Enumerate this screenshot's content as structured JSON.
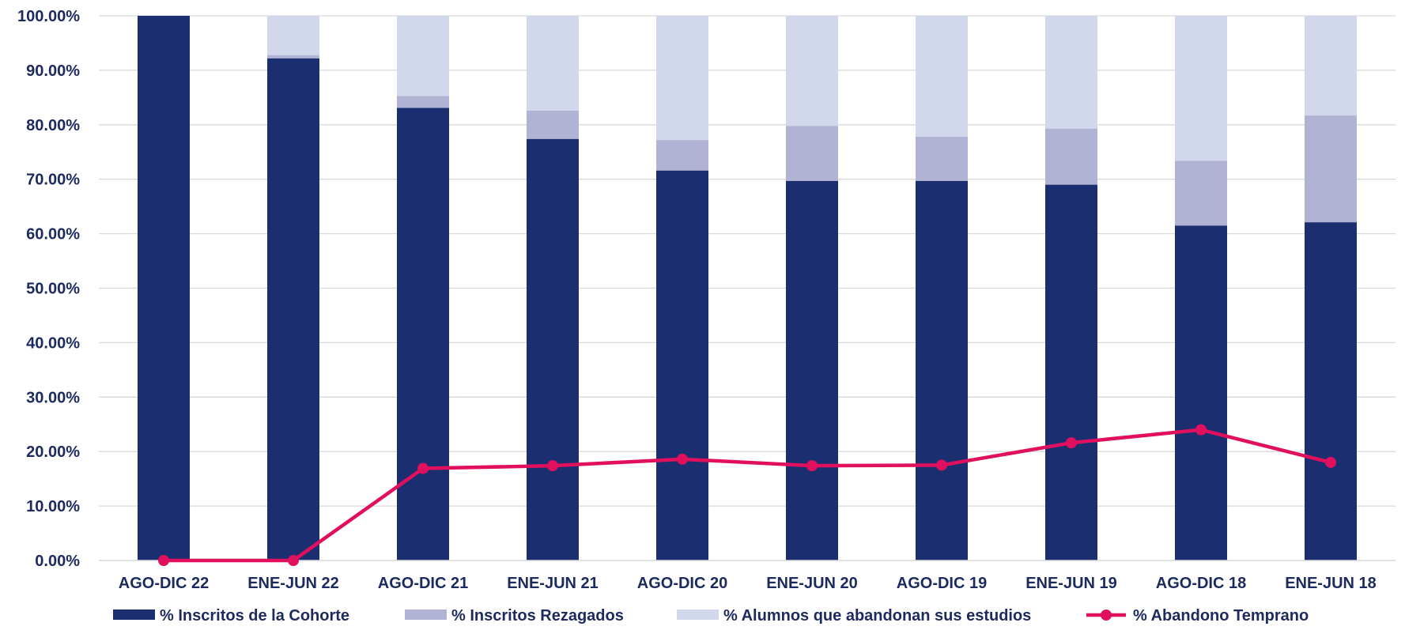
{
  "chart_data": {
    "type": "bar",
    "stacked": true,
    "combo_line": true,
    "title": "",
    "xlabel": "",
    "ylabel": "",
    "ylim": [
      0,
      100
    ],
    "yticks": [
      "0.00%",
      "10.00%",
      "20.00%",
      "30.00%",
      "40.00%",
      "50.00%",
      "60.00%",
      "70.00%",
      "80.00%",
      "90.00%",
      "100.00%"
    ],
    "grid": true,
    "legend_position": "bottom",
    "categories": [
      "AGO-DIC 22",
      "ENE-JUN 22",
      "AGO-DIC 21",
      "ENE-JUN 21",
      "AGO-DIC 20",
      "ENE-JUN 20",
      "AGO-DIC 19",
      "ENE-JUN 19",
      "AGO-DIC 18",
      "ENE-JUN 18"
    ],
    "series": [
      {
        "name": "% Inscritos de la Cohorte",
        "type": "bar",
        "color": "#1b2f70",
        "values": [
          100.0,
          92.2,
          83.1,
          77.4,
          71.6,
          69.7,
          69.7,
          69.0,
          61.5,
          62.1
        ]
      },
      {
        "name": "% Inscritos Rezagados",
        "type": "bar",
        "color": "#b0b3d3",
        "values": [
          0.0,
          0.6,
          2.2,
          5.2,
          5.6,
          10.1,
          8.1,
          10.3,
          11.9,
          19.6
        ]
      },
      {
        "name": "% Alumnos que abandonan sus estudios",
        "type": "bar",
        "color": "#d2d8eb",
        "values": [
          0.0,
          7.2,
          14.7,
          17.4,
          22.8,
          20.2,
          22.2,
          20.7,
          26.6,
          18.3
        ]
      },
      {
        "name": "% Abandono Temprano",
        "type": "line",
        "color": "#e0105e",
        "values": [
          0.0,
          0.0,
          16.9,
          17.4,
          18.6,
          17.4,
          17.5,
          21.6,
          24.0,
          18.0
        ]
      }
    ]
  }
}
